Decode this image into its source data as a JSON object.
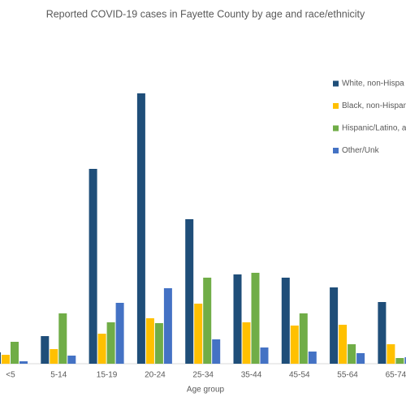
{
  "chart_data": {
    "type": "bar",
    "title": "Reported COVID-19 cases in Fayette County by age and race/ethnicity",
    "x_label": "Age group",
    "categories": [
      "<5",
      "5-14",
      "15-19",
      "20-24",
      "25-34",
      "35-44",
      "45-54",
      "55-64",
      "65-74"
    ],
    "series": [
      {
        "name": "White, non-Hispa",
        "color": "#1f4e79",
        "values": [
          14,
          34,
          240,
          333,
          178,
          110,
          106,
          94,
          76
        ]
      },
      {
        "name": "Black, non-Hispan",
        "color": "#ffc000",
        "values": [
          11,
          18,
          37,
          56,
          74,
          51,
          47,
          48,
          24
        ]
      },
      {
        "name": "Hispanic/Latino, a",
        "color": "#70ad47",
        "values": [
          27,
          62,
          51,
          50,
          106,
          112,
          62,
          24,
          7
        ]
      },
      {
        "name": "Other/Unk",
        "color": "#4472c4",
        "values": [
          3,
          10,
          75,
          93,
          30,
          20,
          15,
          13,
          8
        ]
      }
    ],
    "ylim": [
      0,
      350
    ]
  }
}
